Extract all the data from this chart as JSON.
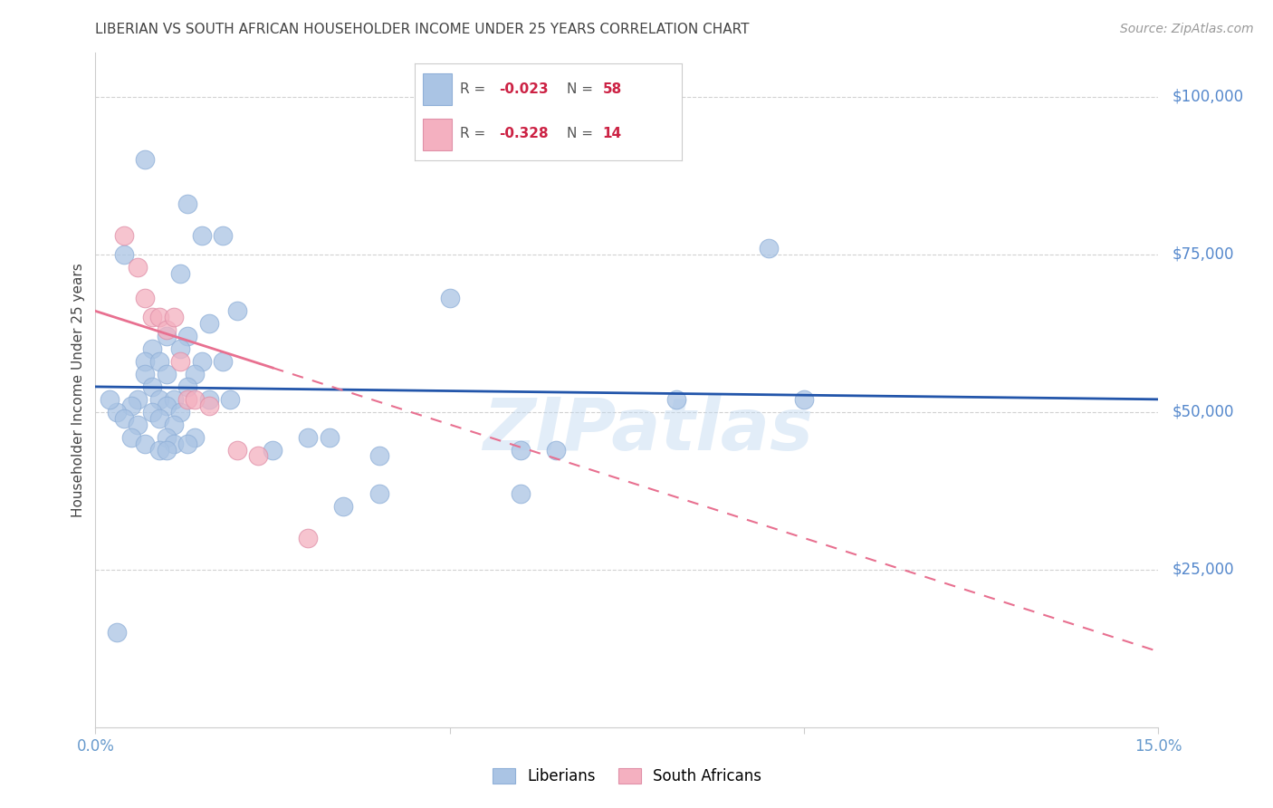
{
  "title": "LIBERIAN VS SOUTH AFRICAN HOUSEHOLDER INCOME UNDER 25 YEARS CORRELATION CHART",
  "source": "Source: ZipAtlas.com",
  "ylabel": "Householder Income Under 25 years",
  "xmin": 0.0,
  "xmax": 0.15,
  "ymin": 0,
  "ymax": 100000,
  "watermark": "ZIPatlas",
  "liberian_color": "#aac4e4",
  "south_african_color": "#f4b0c0",
  "liberian_line_color": "#2255aa",
  "south_african_line_color": "#e87090",
  "liberian_R": -0.023,
  "liberian_N": 58,
  "south_african_R": -0.328,
  "south_african_N": 14,
  "liberian_points": [
    [
      0.007,
      90000
    ],
    [
      0.013,
      83000
    ],
    [
      0.015,
      78000
    ],
    [
      0.018,
      78000
    ],
    [
      0.004,
      75000
    ],
    [
      0.012,
      72000
    ],
    [
      0.05,
      68000
    ],
    [
      0.02,
      66000
    ],
    [
      0.016,
      64000
    ],
    [
      0.01,
      62000
    ],
    [
      0.013,
      62000
    ],
    [
      0.008,
      60000
    ],
    [
      0.012,
      60000
    ],
    [
      0.007,
      58000
    ],
    [
      0.009,
      58000
    ],
    [
      0.015,
      58000
    ],
    [
      0.018,
      58000
    ],
    [
      0.007,
      56000
    ],
    [
      0.01,
      56000
    ],
    [
      0.014,
      56000
    ],
    [
      0.008,
      54000
    ],
    [
      0.013,
      54000
    ],
    [
      0.006,
      52000
    ],
    [
      0.009,
      52000
    ],
    [
      0.011,
      52000
    ],
    [
      0.016,
      52000
    ],
    [
      0.019,
      52000
    ],
    [
      0.005,
      51000
    ],
    [
      0.01,
      51000
    ],
    [
      0.003,
      50000
    ],
    [
      0.008,
      50000
    ],
    [
      0.012,
      50000
    ],
    [
      0.004,
      49000
    ],
    [
      0.009,
      49000
    ],
    [
      0.006,
      48000
    ],
    [
      0.011,
      48000
    ],
    [
      0.005,
      46000
    ],
    [
      0.01,
      46000
    ],
    [
      0.014,
      46000
    ],
    [
      0.007,
      45000
    ],
    [
      0.011,
      45000
    ],
    [
      0.013,
      45000
    ],
    [
      0.009,
      44000
    ],
    [
      0.01,
      44000
    ],
    [
      0.002,
      52000
    ],
    [
      0.03,
      46000
    ],
    [
      0.033,
      46000
    ],
    [
      0.025,
      44000
    ],
    [
      0.04,
      43000
    ],
    [
      0.04,
      37000
    ],
    [
      0.035,
      35000
    ],
    [
      0.06,
      44000
    ],
    [
      0.065,
      44000
    ],
    [
      0.06,
      37000
    ],
    [
      0.082,
      52000
    ],
    [
      0.095,
      76000
    ],
    [
      0.1,
      52000
    ],
    [
      0.003,
      15000
    ]
  ],
  "south_african_points": [
    [
      0.004,
      78000
    ],
    [
      0.006,
      73000
    ],
    [
      0.007,
      68000
    ],
    [
      0.008,
      65000
    ],
    [
      0.009,
      65000
    ],
    [
      0.01,
      63000
    ],
    [
      0.011,
      65000
    ],
    [
      0.012,
      58000
    ],
    [
      0.013,
      52000
    ],
    [
      0.014,
      52000
    ],
    [
      0.016,
      51000
    ],
    [
      0.02,
      44000
    ],
    [
      0.023,
      43000
    ],
    [
      0.03,
      30000
    ]
  ],
  "background_color": "#ffffff",
  "grid_color": "#cccccc",
  "title_color": "#444444",
  "tick_color": "#6699cc",
  "right_tick_color": "#5588cc"
}
